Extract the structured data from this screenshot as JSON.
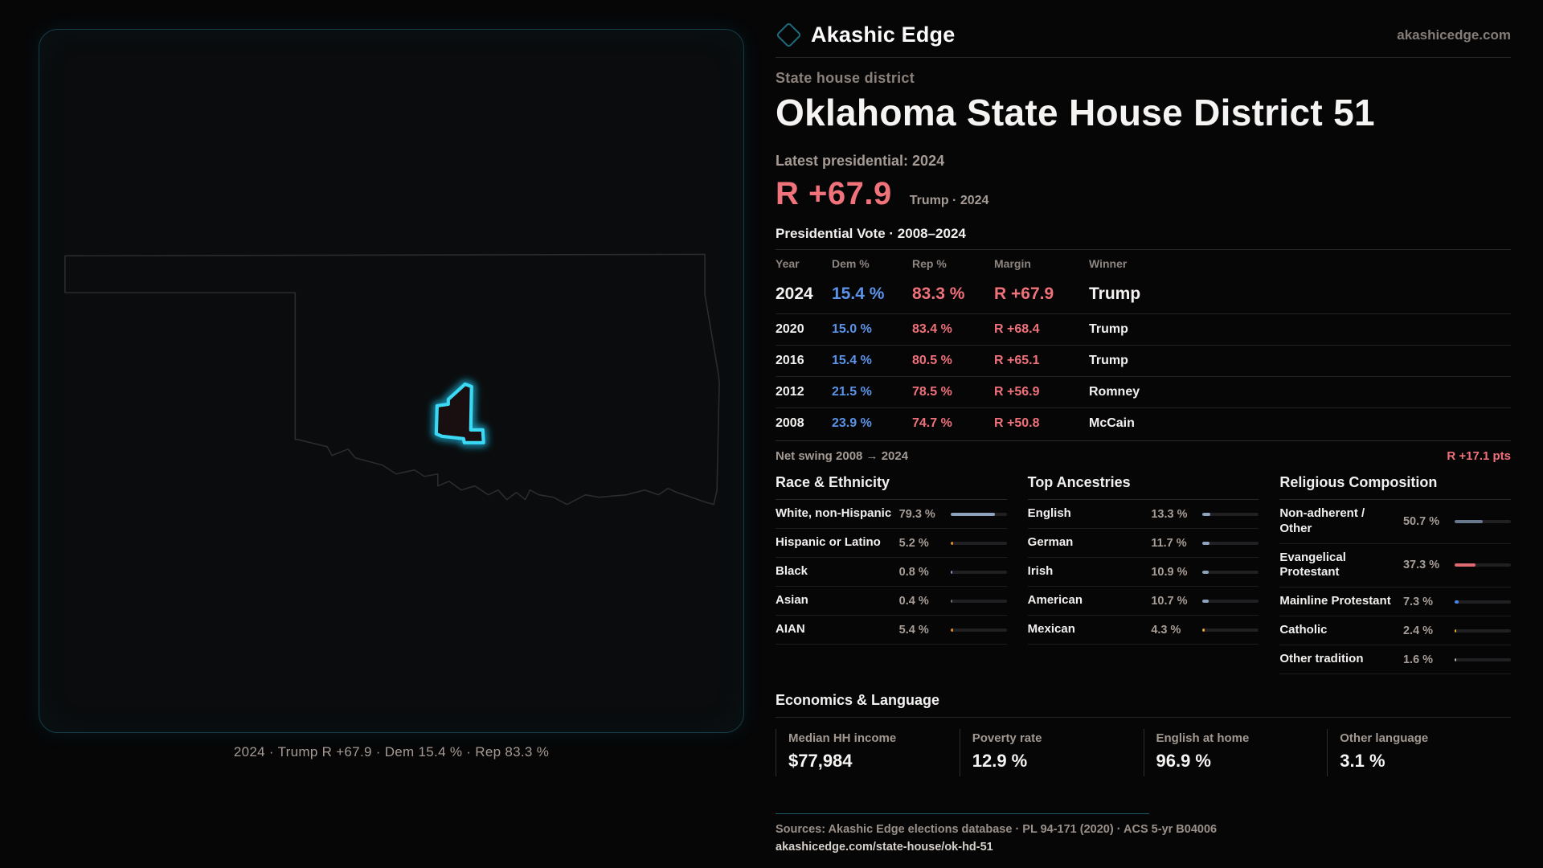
{
  "brand": {
    "name": "Akashic Edge",
    "site": "akashicedge.com",
    "logo_icon": "diamond-outline-icon",
    "accent_teal": "#1d6b79"
  },
  "header": {
    "kicker": "State house district",
    "title": "Oklahoma State House District 51"
  },
  "headline": {
    "label": "Latest presidential: 2024",
    "margin": "R +67.9",
    "margin_note": "Trump · 2024",
    "margin_color": "#f0727b"
  },
  "vote_table": {
    "title": "Presidential Vote · 2008–2024",
    "columns": [
      "Year",
      "Dem %",
      "Rep %",
      "Margin",
      "Winner"
    ],
    "rows": [
      {
        "year": "2024",
        "dem": "15.4 %",
        "rep": "83.3 %",
        "margin": "R +67.9",
        "winner": "Trump"
      },
      {
        "year": "2020",
        "dem": "15.0 %",
        "rep": "83.4 %",
        "margin": "R +68.4",
        "winner": "Trump"
      },
      {
        "year": "2016",
        "dem": "15.4 %",
        "rep": "80.5 %",
        "margin": "R +65.1",
        "winner": "Trump"
      },
      {
        "year": "2012",
        "dem": "21.5 %",
        "rep": "78.5 %",
        "margin": "R +56.9",
        "winner": "Romney"
      },
      {
        "year": "2008",
        "dem": "23.9 %",
        "rep": "74.7 %",
        "margin": "R +50.8",
        "winner": "McCain"
      }
    ],
    "dem_color": "#5b93e8",
    "rep_color": "#f0717a"
  },
  "net_swing": {
    "label": "Net swing 2008 → 2024",
    "value": "R +17.1 pts"
  },
  "demographics": [
    {
      "title": "Race & Ethnicity",
      "rows": [
        {
          "label": "White, non-Hispanic",
          "value": "79.3 %",
          "pct": 79.3,
          "color": "#8ea3bd"
        },
        {
          "label": "Hispanic or Latino",
          "value": "5.2 %",
          "pct": 5.2,
          "color": "#d98a2b"
        },
        {
          "label": "Black",
          "value": "0.8 %",
          "pct": 0.8,
          "color": "#9f8fd8"
        },
        {
          "label": "Asian",
          "value": "0.4 %",
          "pct": 0.4,
          "color": "#6b7280"
        },
        {
          "label": "AIAN",
          "value": "5.4 %",
          "pct": 5.4,
          "color": "#d98a2b"
        }
      ]
    },
    {
      "title": "Top Ancestries",
      "rows": [
        {
          "label": "English",
          "value": "13.3 %",
          "pct": 13.3,
          "color": "#8ea3bd"
        },
        {
          "label": "German",
          "value": "11.7 %",
          "pct": 11.7,
          "color": "#8ea3bd"
        },
        {
          "label": "Irish",
          "value": "10.9 %",
          "pct": 10.9,
          "color": "#8ea3bd"
        },
        {
          "label": "American",
          "value": "10.7 %",
          "pct": 10.7,
          "color": "#8ea3bd"
        },
        {
          "label": "Mexican",
          "value": "4.3 %",
          "pct": 4.3,
          "color": "#e0a32e"
        }
      ]
    },
    {
      "title": "Religious Composition",
      "rows": [
        {
          "label": "Non-adherent / Other",
          "value": "50.7 %",
          "pct": 50.7,
          "color": "#67778c"
        },
        {
          "label": "Evangelical Protestant",
          "value": "37.3 %",
          "pct": 37.3,
          "color": "#e06a72"
        },
        {
          "label": "Mainline Protestant",
          "value": "7.3 %",
          "pct": 7.3,
          "color": "#4a86e8"
        },
        {
          "label": "Catholic",
          "value": "2.4 %",
          "pct": 2.4,
          "color": "#e8b021"
        },
        {
          "label": "Other tradition",
          "value": "1.6 %",
          "pct": 1.6,
          "color": "#b9b4ae"
        }
      ]
    }
  ],
  "economics": {
    "title": "Economics & Language",
    "stats": [
      {
        "label": "Median HH income",
        "value": "$77,984"
      },
      {
        "label": "Poverty rate",
        "value": "12.9 %"
      },
      {
        "label": "English at home",
        "value": "96.9 %"
      },
      {
        "label": "Other language",
        "value": "3.1 %"
      }
    ]
  },
  "footer": {
    "sources": "Sources: Akashic Edge elections database · PL 94-171 (2020) · ACS 5-yr B04006",
    "permalink": "akashicedge.com/state-house/ok-hd-51"
  },
  "map": {
    "caption": "2024 · Trump R +67.9 · Dem 15.4 % · Rep 83.3 %",
    "district_color": "#3cd9f5"
  }
}
